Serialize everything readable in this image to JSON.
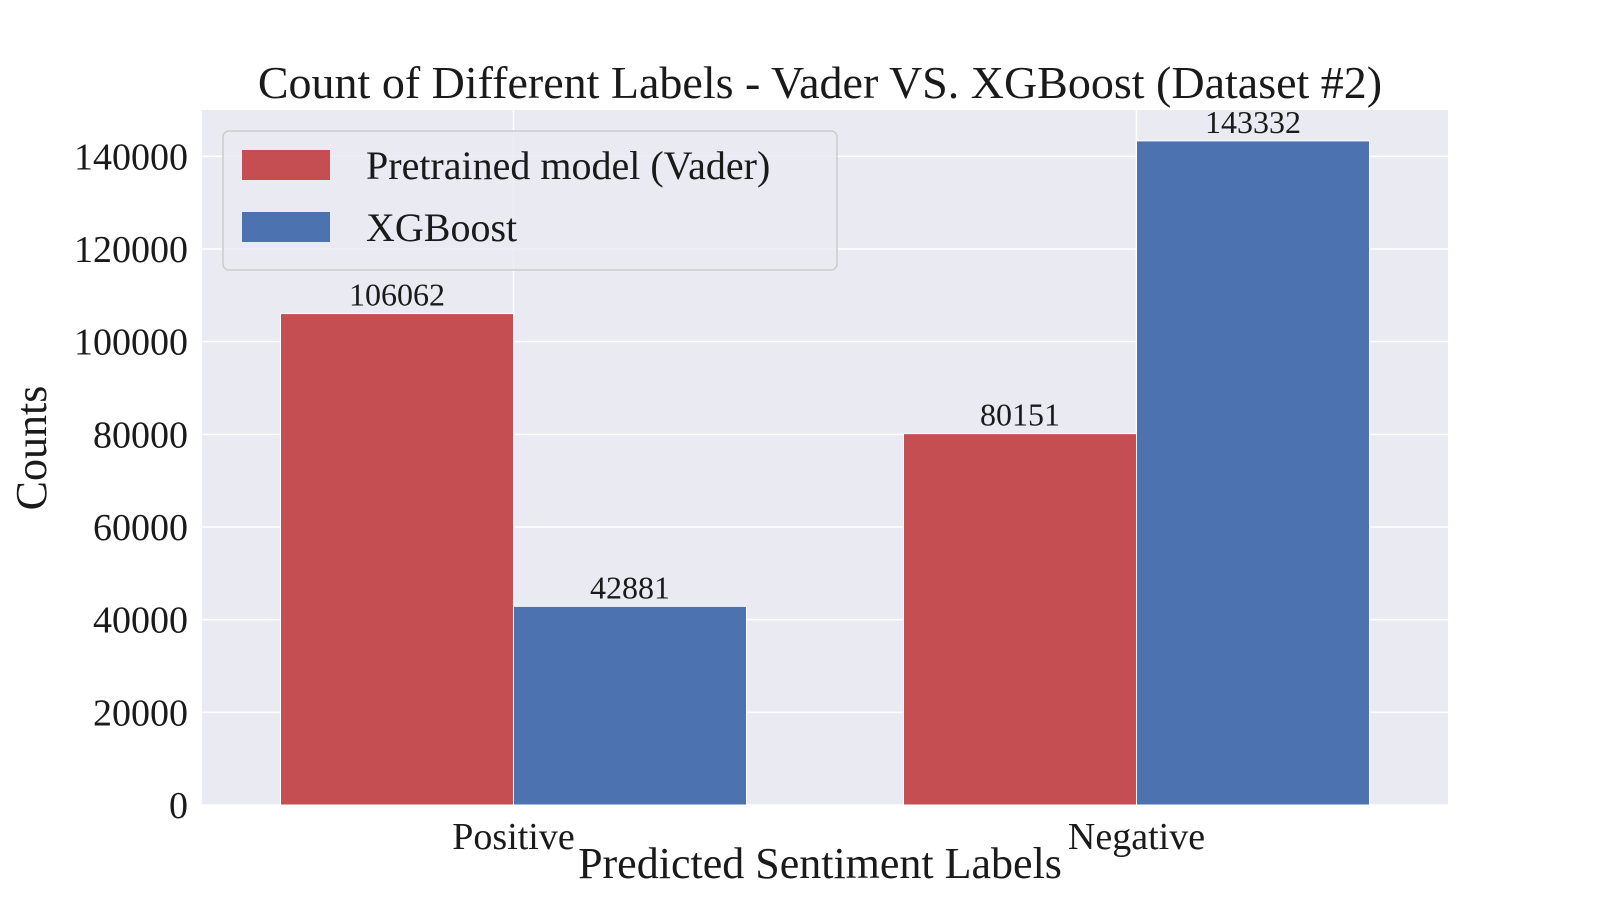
{
  "chart_data": {
    "type": "bar",
    "title": "Count of Different Labels - Vader VS. XGBoost (Dataset #2)",
    "xlabel": "Predicted Sentiment Labels",
    "ylabel": "Counts",
    "categories": [
      "Positive",
      "Negative"
    ],
    "series": [
      {
        "name": "Pretrained model (Vader)",
        "color": "#c44e52",
        "values": [
          106062,
          80151
        ]
      },
      {
        "name": "XGBoost",
        "color": "#4c72b0",
        "values": [
          42881,
          143332
        ]
      }
    ],
    "ylim": [
      0,
      150000
    ],
    "yticks": [
      0,
      20000,
      40000,
      60000,
      80000,
      100000,
      120000,
      140000
    ],
    "grid": true,
    "legend_position": "top-left",
    "colors": {
      "plot_background": "#eaeaf2",
      "grid": "#ffffff",
      "text": "#1a1a1a"
    }
  }
}
